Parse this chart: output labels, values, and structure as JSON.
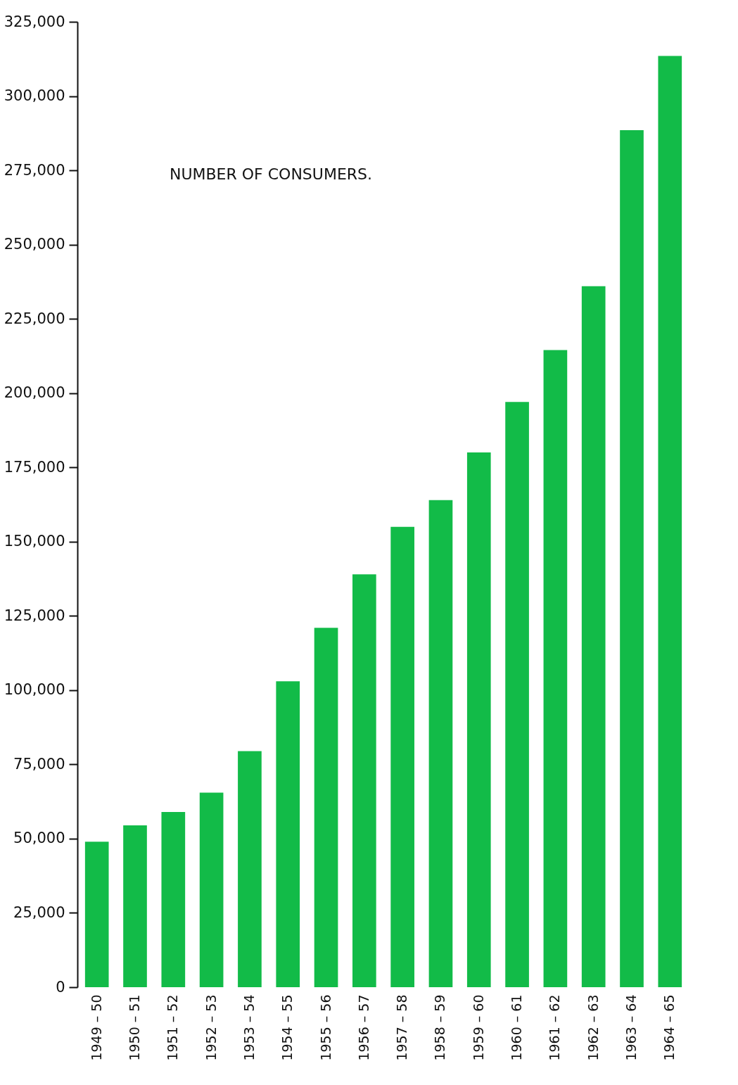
{
  "chart_data": {
    "type": "bar",
    "title": "NUMBER OF CONSUMERS.",
    "categories": [
      "1949 – 50",
      "1950 – 51",
      "1951 – 52",
      "1952 – 53",
      "1953 – 54",
      "1954 – 55",
      "1955 – 56",
      "1956 – 57",
      "1957 – 58",
      "1958 – 59",
      "1959 – 60",
      "1960 – 61",
      "1961 – 62",
      "1962 – 63",
      "1963 – 64",
      "1964 – 65"
    ],
    "values": [
      49000,
      54500,
      59000,
      65500,
      79500,
      103000,
      121000,
      139000,
      155000,
      164000,
      180000,
      197000,
      214500,
      236000,
      288500,
      313500
    ],
    "color": "#12bb48",
    "ylim": [
      0,
      325000
    ],
    "yticks": [
      0,
      {
        "value": 25000,
        "label": "25,000"
      },
      {
        "value": 50000,
        "label": "50,000"
      },
      {
        "value": 75000,
        "label": "75,000"
      },
      {
        "value": 100000,
        "label": "100,000"
      },
      {
        "value": 125000,
        "label": "125,000"
      },
      {
        "value": 150000,
        "label": "150,000"
      },
      {
        "value": 175000,
        "label": "175,000"
      },
      {
        "value": 200000,
        "label": "200,000"
      },
      {
        "value": 225000,
        "label": "225,000"
      },
      {
        "value": 250000,
        "label": "250,000"
      },
      {
        "value": 275000,
        "label": "275,000"
      },
      {
        "value": 300000,
        "label": "300,000"
      },
      {
        "value": 325000,
        "label": "325,000"
      }
    ],
    "grid": false
  }
}
